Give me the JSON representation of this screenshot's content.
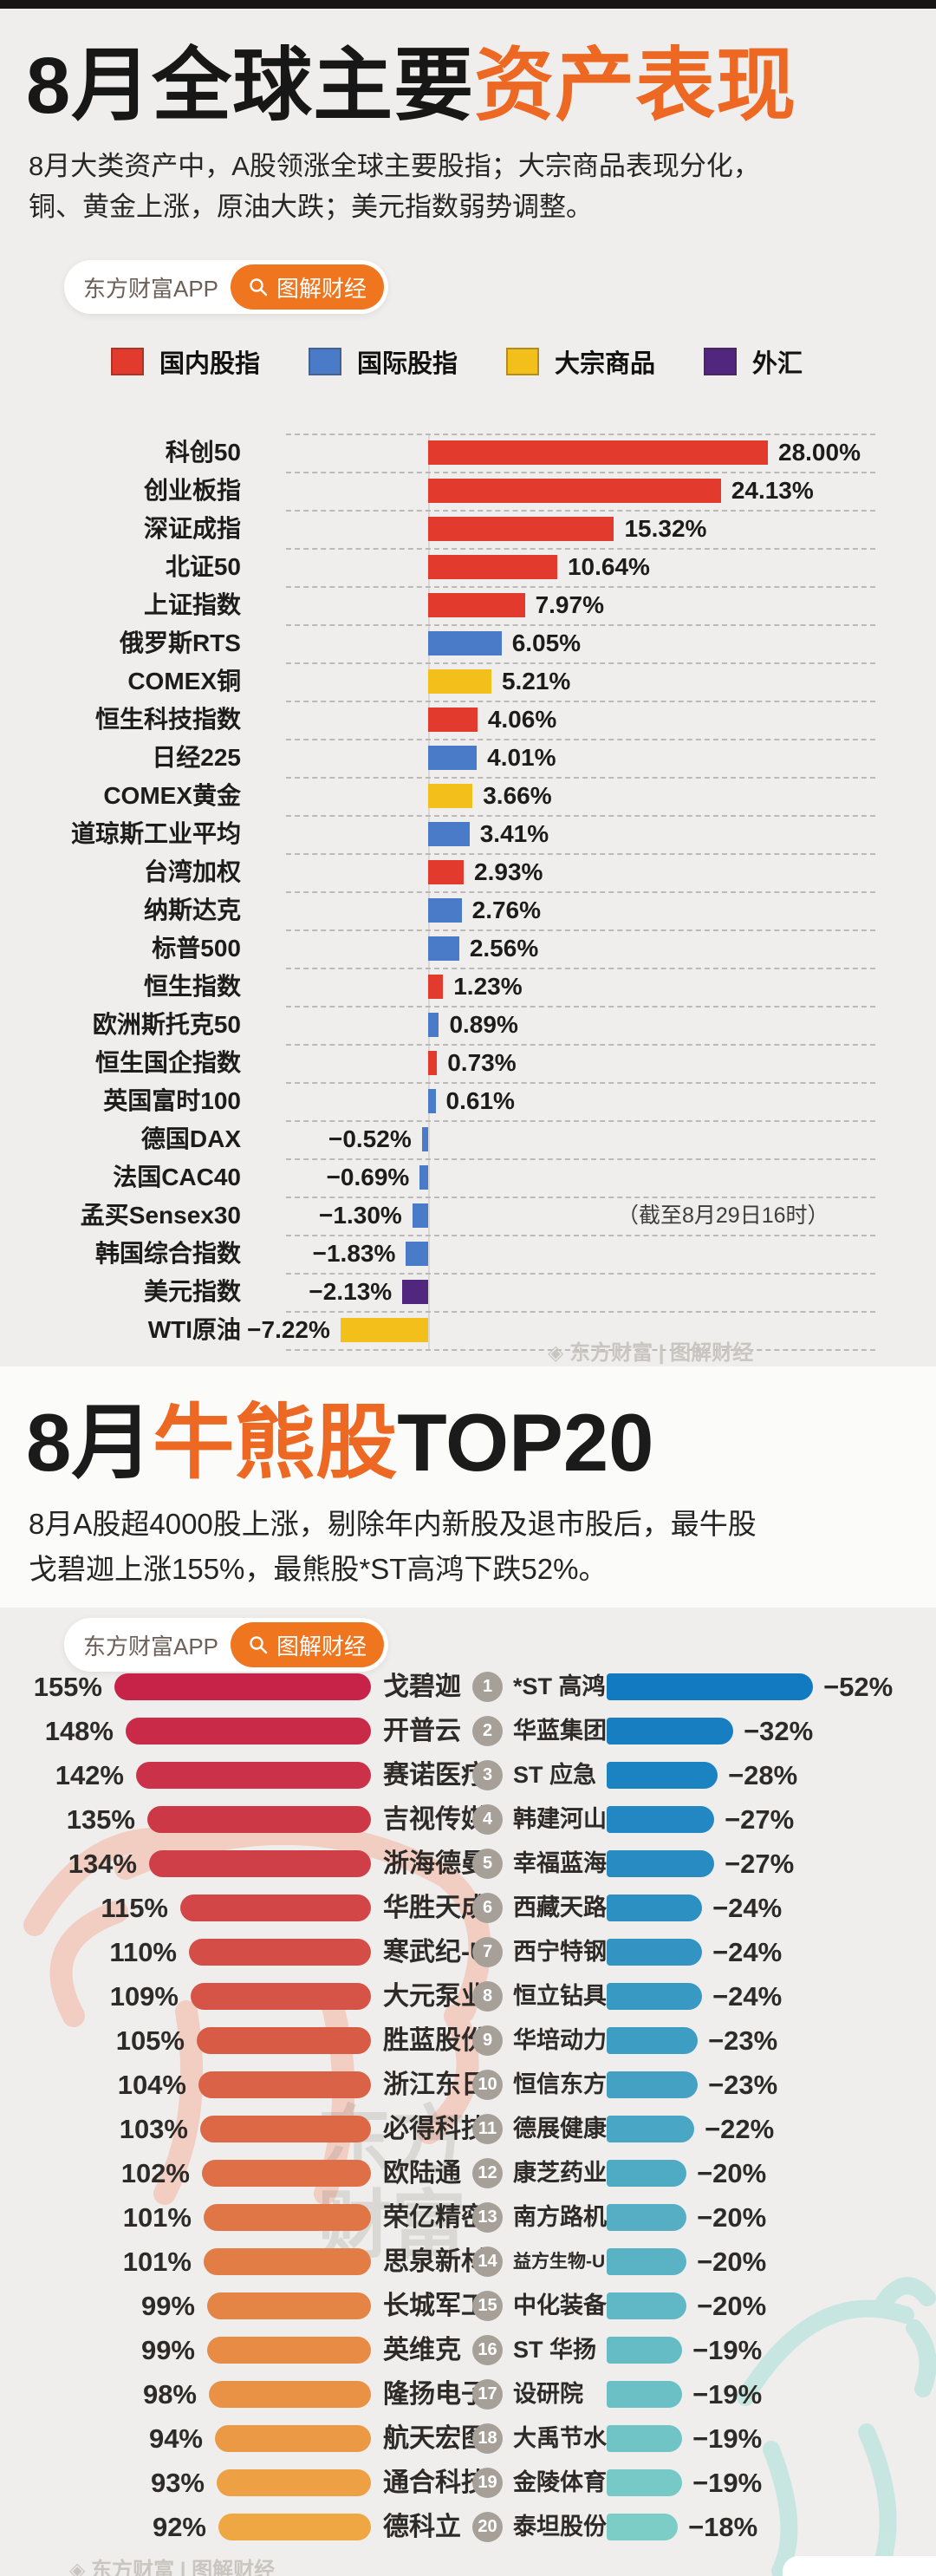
{
  "header": {
    "title_black": "8月全球主要",
    "title_orange": "资产表现",
    "subtitle_lines": [
      "8月大类资产中，A股领涨全球主要股指；大宗商品表现分化，",
      "铜、黄金上涨，原油大跌；美元指数弱势调整。"
    ],
    "badge_app": "东方财富APP",
    "badge_tag": "图解财经"
  },
  "section2": {
    "title_p1": "8月",
    "title_p2": "牛熊股",
    "title_p3": "TOP20",
    "subtitle_lines": [
      "8月A股超4000股上涨，剔除年内新股及退市股后，最牛股",
      "戈碧迦上涨155%，最熊股*ST高鸿下跌52%。"
    ],
    "badge_app": "东方财富APP",
    "badge_tag": "图解财经"
  },
  "colors": {
    "accent_orange": "#ec6823",
    "badge_orange": "#f0751f",
    "domestic_red": "#e23a2d",
    "intl_blue": "#4a7bc9",
    "commodity_yellow": "#f2bf1b",
    "fx_purple": "#50267f",
    "bull_bar_start": "#c72348",
    "bull_bar_end": "#efa744",
    "bear_bar_start": "#117ac1",
    "bear_bar_end": "#7ccdc6",
    "rank_badge_gray": "#a6a099"
  },
  "watermarks": {
    "chart1_credit": "◈ 东方财富 | 图解财经",
    "bottom_credit": "◈ 东方财富 | 图解财经",
    "brand_text": "东方财富"
  },
  "chart_data": [
    {
      "type": "bar",
      "title": "8月全球主要资产表现",
      "orientation": "horizontal",
      "unit": "%",
      "xlim": [
        -8,
        30
      ],
      "grid": "dashed-row-separators",
      "legend_position": "top",
      "note": "（截至8月29日16时）",
      "legend": [
        {
          "label": "国内股指",
          "color": "#e23a2d"
        },
        {
          "label": "国际股指",
          "color": "#4a7bc9"
        },
        {
          "label": "大宗商品",
          "color": "#f2bf1b"
        },
        {
          "label": "外汇",
          "color": "#50267f"
        }
      ],
      "items": [
        {
          "label": "科创50",
          "value": 28.0,
          "display": "28.00%",
          "category": "国内股指"
        },
        {
          "label": "创业板指",
          "value": 24.13,
          "display": "24.13%",
          "category": "国内股指"
        },
        {
          "label": "深证成指",
          "value": 15.32,
          "display": "15.32%",
          "category": "国内股指"
        },
        {
          "label": "北证50",
          "value": 10.64,
          "display": "10.64%",
          "category": "国内股指"
        },
        {
          "label": "上证指数",
          "value": 7.97,
          "display": "7.97%",
          "category": "国内股指"
        },
        {
          "label": "俄罗斯RTS",
          "value": 6.05,
          "display": "6.05%",
          "category": "国际股指"
        },
        {
          "label": "COMEX铜",
          "value": 5.21,
          "display": "5.21%",
          "category": "大宗商品"
        },
        {
          "label": "恒生科技指数",
          "value": 4.06,
          "display": "4.06%",
          "category": "国内股指"
        },
        {
          "label": "日经225",
          "value": 4.01,
          "display": "4.01%",
          "category": "国际股指"
        },
        {
          "label": "COMEX黄金",
          "value": 3.66,
          "display": "3.66%",
          "category": "大宗商品"
        },
        {
          "label": "道琼斯工业平均",
          "value": 3.41,
          "display": "3.41%",
          "category": "国际股指"
        },
        {
          "label": "台湾加权",
          "value": 2.93,
          "display": "2.93%",
          "category": "国内股指"
        },
        {
          "label": "纳斯达克",
          "value": 2.76,
          "display": "2.76%",
          "category": "国际股指"
        },
        {
          "label": "标普500",
          "value": 2.56,
          "display": "2.56%",
          "category": "国际股指"
        },
        {
          "label": "恒生指数",
          "value": 1.23,
          "display": "1.23%",
          "category": "国内股指"
        },
        {
          "label": "欧洲斯托克50",
          "value": 0.89,
          "display": "0.89%",
          "category": "国际股指"
        },
        {
          "label": "恒生国企指数",
          "value": 0.73,
          "display": "0.73%",
          "category": "国内股指"
        },
        {
          "label": "英国富时100",
          "value": 0.61,
          "display": "0.61%",
          "category": "国际股指"
        },
        {
          "label": "德国DAX",
          "value": -0.52,
          "display": "−0.52%",
          "category": "国际股指"
        },
        {
          "label": "法国CAC40",
          "value": -0.69,
          "display": "−0.69%",
          "category": "国际股指"
        },
        {
          "label": "孟买Sensex30",
          "value": -1.3,
          "display": "−1.30%",
          "category": "国际股指"
        },
        {
          "label": "韩国综合指数",
          "value": -1.83,
          "display": "−1.83%",
          "category": "国际股指"
        },
        {
          "label": "美元指数",
          "value": -2.13,
          "display": "−2.13%",
          "category": "外汇"
        },
        {
          "label": "WTI原油",
          "value": -7.22,
          "display": "−7.22%",
          "category": "大宗商品"
        }
      ]
    },
    {
      "type": "bar",
      "title": "8月牛股TOP20",
      "orientation": "horizontal",
      "unit": "%",
      "items": [
        {
          "rank": 1,
          "name": "戈碧迦",
          "value": 155,
          "display": "155%"
        },
        {
          "rank": 2,
          "name": "开普云",
          "value": 148,
          "display": "148%"
        },
        {
          "rank": 3,
          "name": "赛诺医疗",
          "value": 142,
          "display": "142%"
        },
        {
          "rank": 4,
          "name": "吉视传媒",
          "value": 135,
          "display": "135%"
        },
        {
          "rank": 5,
          "name": "浙海德曼",
          "value": 134,
          "display": "134%"
        },
        {
          "rank": 6,
          "name": "华胜天成",
          "value": 115,
          "display": "115%"
        },
        {
          "rank": 7,
          "name": "寒武纪-U",
          "value": 110,
          "display": "110%"
        },
        {
          "rank": 8,
          "name": "大元泵业",
          "value": 109,
          "display": "109%"
        },
        {
          "rank": 9,
          "name": "胜蓝股份",
          "value": 105,
          "display": "105%"
        },
        {
          "rank": 10,
          "name": "浙江东日",
          "value": 104,
          "display": "104%"
        },
        {
          "rank": 11,
          "name": "必得科技",
          "value": 103,
          "display": "103%"
        },
        {
          "rank": 12,
          "name": "欧陆通",
          "value": 102,
          "display": "102%"
        },
        {
          "rank": 13,
          "name": "荣亿精密",
          "value": 101,
          "display": "101%"
        },
        {
          "rank": 14,
          "name": "思泉新材",
          "value": 101,
          "display": "101%"
        },
        {
          "rank": 15,
          "name": "长城军工",
          "value": 99,
          "display": "99%"
        },
        {
          "rank": 16,
          "name": "英维克",
          "value": 99,
          "display": "99%"
        },
        {
          "rank": 17,
          "name": "隆扬电子",
          "value": 98,
          "display": "98%"
        },
        {
          "rank": 18,
          "name": "航天宏图",
          "value": 94,
          "display": "94%"
        },
        {
          "rank": 19,
          "name": "通合科技",
          "value": 93,
          "display": "93%"
        },
        {
          "rank": 20,
          "name": "德科立",
          "value": 92,
          "display": "92%"
        }
      ]
    },
    {
      "type": "bar",
      "title": "8月熊股TOP20",
      "orientation": "horizontal",
      "unit": "%",
      "items": [
        {
          "rank": 1,
          "name": "*ST 高鸿",
          "value": -52,
          "display": "−52%"
        },
        {
          "rank": 2,
          "name": "华蓝集团",
          "value": -32,
          "display": "−32%"
        },
        {
          "rank": 3,
          "name": "ST 应急",
          "value": -28,
          "display": "−28%"
        },
        {
          "rank": 4,
          "name": "韩建河山",
          "value": -27,
          "display": "−27%"
        },
        {
          "rank": 5,
          "name": "幸福蓝海",
          "value": -27,
          "display": "−27%"
        },
        {
          "rank": 6,
          "name": "西藏天路",
          "value": -24,
          "display": "−24%"
        },
        {
          "rank": 7,
          "name": "西宁特钢",
          "value": -24,
          "display": "−24%"
        },
        {
          "rank": 8,
          "name": "恒立钻具",
          "value": -24,
          "display": "−24%"
        },
        {
          "rank": 9,
          "name": "华培动力",
          "value": -23,
          "display": "−23%"
        },
        {
          "rank": 10,
          "name": "恒信东方",
          "value": -23,
          "display": "−23%"
        },
        {
          "rank": 11,
          "name": "德展健康",
          "value": -22,
          "display": "−22%"
        },
        {
          "rank": 12,
          "name": "康芝药业",
          "value": -20,
          "display": "−20%"
        },
        {
          "rank": 13,
          "name": "南方路机",
          "value": -20,
          "display": "−20%"
        },
        {
          "rank": 14,
          "name": "益方生物-U",
          "value": -20,
          "display": "−20%"
        },
        {
          "rank": 15,
          "name": "中化装备",
          "value": -20,
          "display": "−20%"
        },
        {
          "rank": 16,
          "name": "ST 华扬",
          "value": -19,
          "display": "−19%"
        },
        {
          "rank": 17,
          "name": "设研院",
          "value": -19,
          "display": "−19%"
        },
        {
          "rank": 18,
          "name": "大禹节水",
          "value": -19,
          "display": "−19%"
        },
        {
          "rank": 19,
          "name": "金陵体育",
          "value": -19,
          "display": "−19%"
        },
        {
          "rank": 20,
          "name": "泰坦股份",
          "value": -18,
          "display": "−18%"
        }
      ]
    }
  ]
}
